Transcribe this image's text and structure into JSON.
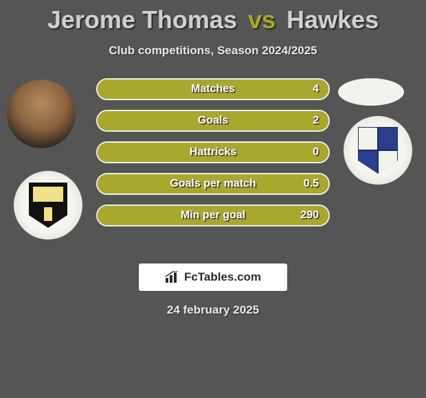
{
  "title": {
    "player1": "Jerome Thomas",
    "vs": "vs",
    "player2": "Hawkes",
    "color_players": "#d0d0cc",
    "color_vs": "#a8a82e"
  },
  "subtitle": "Club competitions, Season 2024/2025",
  "left": {
    "avatar_name": "player-avatar-left",
    "crest_name": "club-crest-left"
  },
  "right": {
    "avatar_name": "player-avatar-right",
    "crest_name": "club-crest-right"
  },
  "stats": {
    "bar_border_color": "#f0f0ea",
    "fill_color": "#a8a82e",
    "label_color": "#ffffff",
    "rows": [
      {
        "label": "Matches",
        "value": "4",
        "fill_pct": 100
      },
      {
        "label": "Goals",
        "value": "2",
        "fill_pct": 100
      },
      {
        "label": "Hattricks",
        "value": "0",
        "fill_pct": 100
      },
      {
        "label": "Goals per match",
        "value": "0.5",
        "fill_pct": 100
      },
      {
        "label": "Min per goal",
        "value": "290",
        "fill_pct": 100
      }
    ]
  },
  "brand": {
    "icon_name": "bar-chart-icon",
    "text": "FcTables.com"
  },
  "date": "24 february 2025",
  "colors": {
    "background": "#555555",
    "brand_box_bg": "#ffffff"
  }
}
